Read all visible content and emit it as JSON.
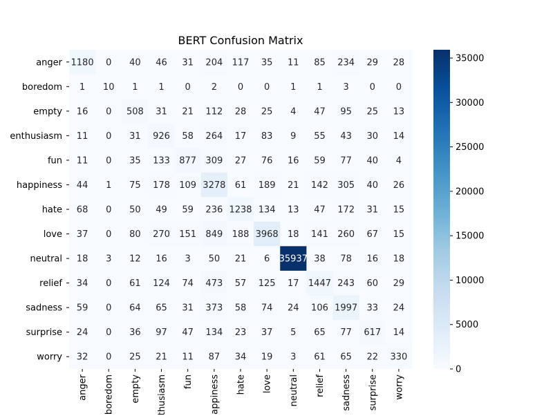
{
  "chart_data": {
    "type": "heatmap",
    "title": "BERT Confusion Matrix",
    "xlabel": "",
    "ylabel": "",
    "row_labels": [
      "anger",
      "boredom",
      "empty",
      "enthusiasm",
      "fun",
      "happiness",
      "hate",
      "love",
      "neutral",
      "relief",
      "sadness",
      "surprise",
      "worry"
    ],
    "col_labels": [
      "anger",
      "boredom",
      "empty",
      "enthusiasm",
      "fun",
      "happiness",
      "hate",
      "love",
      "neutral",
      "relief",
      "sadness",
      "surprise",
      "worry"
    ],
    "values": [
      [
        1180,
        0,
        40,
        46,
        31,
        204,
        117,
        35,
        11,
        85,
        234,
        29,
        28
      ],
      [
        1,
        10,
        1,
        1,
        0,
        2,
        0,
        0,
        1,
        1,
        3,
        0,
        0
      ],
      [
        16,
        0,
        508,
        31,
        21,
        112,
        28,
        25,
        4,
        47,
        95,
        25,
        13
      ],
      [
        11,
        0,
        31,
        926,
        58,
        264,
        17,
        83,
        9,
        55,
        43,
        30,
        14
      ],
      [
        11,
        0,
        35,
        133,
        877,
        309,
        27,
        76,
        16,
        59,
        77,
        40,
        4
      ],
      [
        44,
        1,
        75,
        178,
        109,
        3278,
        61,
        189,
        21,
        142,
        305,
        40,
        26
      ],
      [
        68,
        0,
        50,
        49,
        59,
        236,
        1238,
        134,
        13,
        47,
        172,
        31,
        15
      ],
      [
        37,
        0,
        80,
        270,
        151,
        849,
        188,
        3968,
        18,
        141,
        260,
        67,
        15
      ],
      [
        18,
        3,
        12,
        16,
        3,
        50,
        21,
        6,
        35937,
        38,
        78,
        16,
        18
      ],
      [
        34,
        0,
        61,
        124,
        74,
        473,
        57,
        125,
        17,
        1447,
        243,
        60,
        29
      ],
      [
        59,
        0,
        64,
        65,
        31,
        373,
        58,
        74,
        24,
        106,
        1997,
        33,
        24
      ],
      [
        24,
        0,
        36,
        97,
        47,
        134,
        23,
        37,
        5,
        65,
        77,
        617,
        14
      ],
      [
        32,
        0,
        25,
        21,
        11,
        87,
        34,
        19,
        3,
        61,
        65,
        22,
        330
      ]
    ],
    "colorbar": {
      "min": 0,
      "max": 35937,
      "ticks": [
        0,
        5000,
        10000,
        15000,
        20000,
        25000,
        30000,
        35000
      ],
      "colormap": "Blues",
      "low_color": "#f7fbff",
      "high_color": "#08306b"
    },
    "grid": false
  }
}
